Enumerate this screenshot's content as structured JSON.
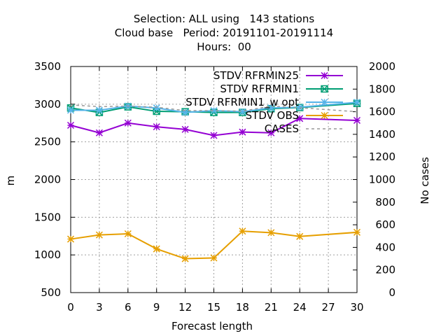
{
  "chart_data": {
    "type": "line",
    "title_lines": [
      "Selection: ALL using   143 stations",
      "Cloud base   Period: 20191101-20191114",
      "Hours:  00"
    ],
    "xlabel": "Forecast length",
    "ylabel": "m",
    "y2label": "No cases",
    "xlim": [
      0,
      30
    ],
    "ylim": [
      500,
      3500
    ],
    "y2lim": [
      0,
      2000
    ],
    "x_ticks": [
      "0",
      "3",
      "6",
      "9",
      "12",
      "15",
      "18",
      "21",
      "24",
      "27",
      "30"
    ],
    "y_ticks": [
      "500",
      "1000",
      "1500",
      "2000",
      "2500",
      "3000",
      "3500"
    ],
    "y2_ticks": [
      "0",
      "200",
      "400",
      "600",
      "800",
      "1000",
      "1200",
      "1400",
      "1600",
      "1800",
      "2000"
    ],
    "grid": true,
    "legend_position": "top-right",
    "series": [
      {
        "name": "STDV RFRMIN25",
        "color": "#9400d3",
        "marker": "x-star",
        "axis": "left",
        "x": [
          0,
          3,
          6,
          9,
          12,
          15,
          18,
          21,
          24,
          30
        ],
        "values": [
          2720,
          2620,
          2750,
          2700,
          2665,
          2585,
          2630,
          2620,
          2810,
          2785
        ]
      },
      {
        "name": "STDV RFRMIN1",
        "color": "#009e73",
        "marker": "boxed-x",
        "axis": "left",
        "x": [
          0,
          3,
          6,
          9,
          12,
          15,
          18,
          21,
          24,
          30
        ],
        "values": [
          2950,
          2890,
          2965,
          2905,
          2900,
          2890,
          2890,
          2940,
          2955,
          3010
        ]
      },
      {
        "name": "STDV RFRMIN1_w opt",
        "color": "#56b4e9",
        "marker": "star",
        "axis": "left",
        "x": [
          0,
          3,
          6,
          9,
          12,
          15,
          18,
          21,
          24,
          30
        ],
        "values": [
          2920,
          2920,
          2975,
          2950,
          2890,
          2915,
          2900,
          2950,
          2960,
          3025
        ]
      },
      {
        "name": "STDV OBS",
        "color": "#e69f00",
        "marker": "x-star",
        "axis": "left",
        "x": [
          0,
          3,
          6,
          9,
          12,
          15,
          18,
          21,
          24,
          30
        ],
        "values": [
          1210,
          1265,
          1280,
          1080,
          950,
          960,
          1315,
          1295,
          1245,
          1300
        ]
      },
      {
        "name": "CASES",
        "color": "#999999",
        "marker": "none",
        "dashed": true,
        "axis": "right",
        "x": [
          0,
          3,
          6,
          9,
          12,
          15,
          18,
          21,
          24,
          30
        ],
        "values": [
          1660,
          1645,
          1650,
          1640,
          1610,
          1610,
          1605,
          1650,
          1635,
          1600
        ]
      }
    ]
  }
}
